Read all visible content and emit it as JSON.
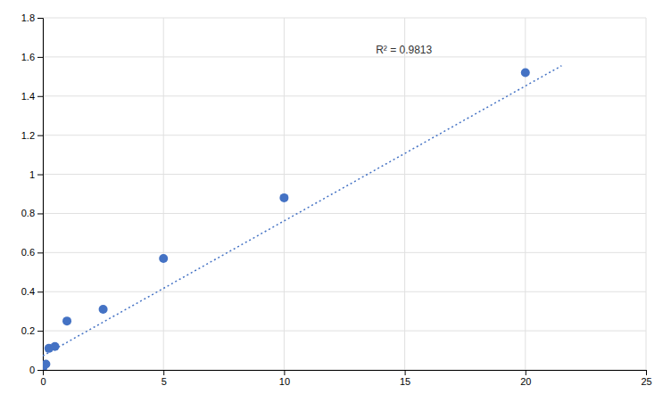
{
  "chart_data": {
    "type": "scatter",
    "series": [
      {
        "type": "scatter",
        "color": "#4472C4",
        "x": [
          0.0,
          0.125,
          0.25,
          0.5,
          1.0,
          2.5,
          5.0,
          10.0,
          20.0
        ],
        "values": [
          0.01,
          0.03,
          0.11,
          0.12,
          0.25,
          0.31,
          0.57,
          0.88,
          1.52
        ]
      },
      {
        "type": "line",
        "line_style": "dotted",
        "color": "#4472C4",
        "x": [
          0,
          21.5
        ],
        "values": [
          0.072,
          1.555
        ]
      }
    ],
    "annotations": [
      {
        "text": "R² = 0.9813",
        "x": 13.8,
        "y": 1.66
      }
    ],
    "xlim": [
      0,
      25
    ],
    "ylim": [
      0,
      1.8
    ],
    "xticks": [
      0,
      5,
      10,
      15,
      20,
      25
    ],
    "yticks": [
      0,
      0.2,
      0.4,
      0.6,
      0.8,
      1,
      1.2,
      1.4,
      1.6,
      1.8
    ],
    "grid": true
  }
}
